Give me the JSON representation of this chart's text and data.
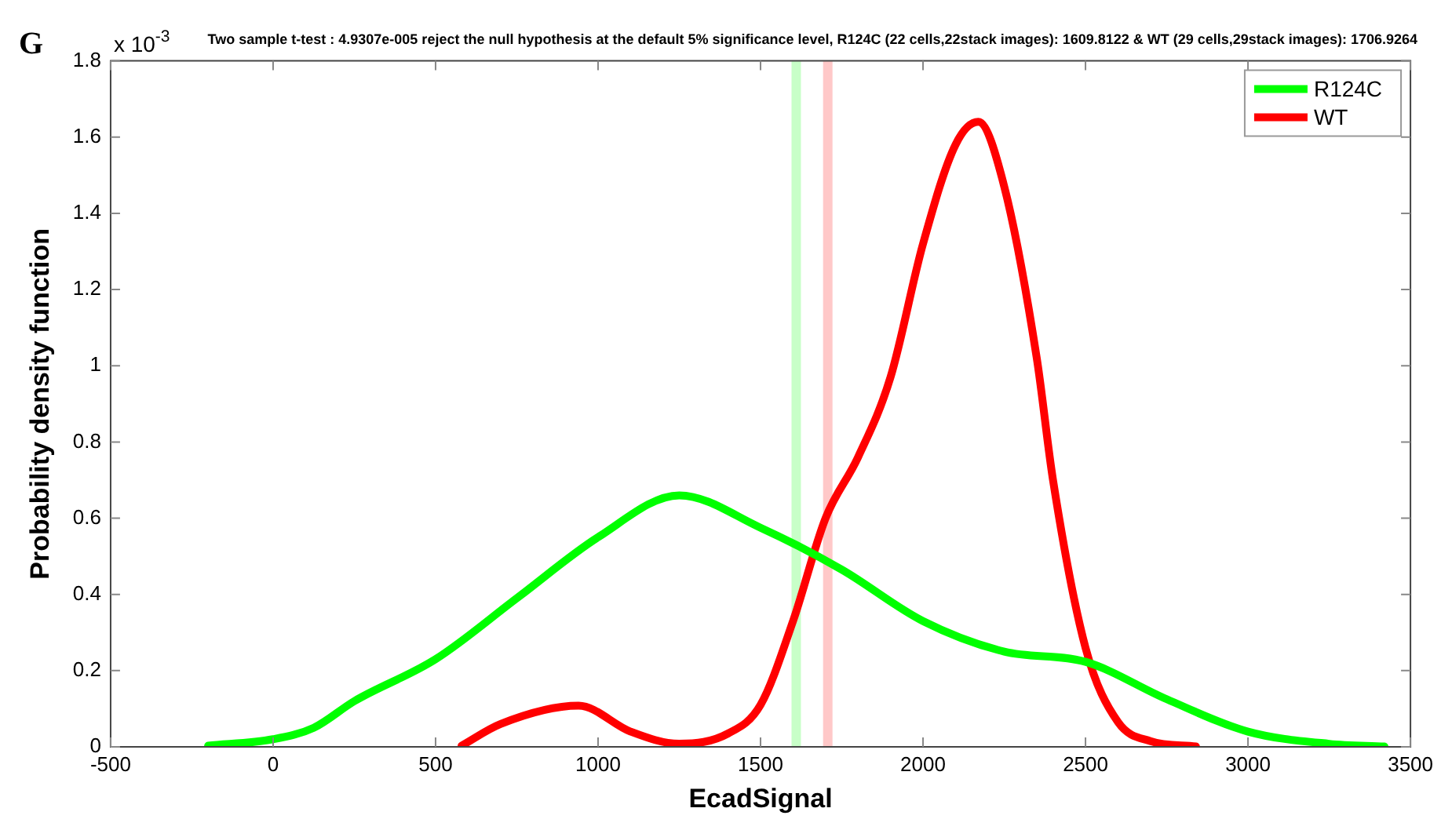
{
  "chart_data": {
    "type": "line",
    "title": "Two sample t-test : 4.9307e-005 reject the null hypothesis at the default 5% significance level, R124C (22 cells,22stack images): 1609.8122 & WT (29 cells,29stack images): 1706.9264",
    "xlabel": "EcadSignal",
    "ylabel": "Probability density function",
    "annotations": [
      "G",
      "x 10$^{-3}$"
    ],
    "xlim": [
      -500,
      3500
    ],
    "xticks": [
      -500,
      0,
      500,
      1000,
      1500,
      2000,
      2500,
      3000,
      3500
    ],
    "ylim": [
      0,
      1.8
    ],
    "yticks": [
      0,
      0.2,
      0.4,
      0.6,
      0.8,
      1,
      1.2,
      1.4,
      1.6,
      1.8
    ],
    "grid": false,
    "legend": "top right",
    "marker": "none",
    "line_style": "solid",
    "ref_lines": [
      {
        "axis": "x",
        "value": 1609.8122,
        "color": "#c8ffc8"
      },
      {
        "axis": "x",
        "value": 1706.9264,
        "color": "#ffc8c8"
      }
    ],
    "series": [
      {
        "name": "R124C",
        "color": "#00ff00",
        "x": [
          -200,
          0,
          125,
          250,
          500,
          750,
          1000,
          1250,
          1500,
          1750,
          2000,
          2250,
          2500,
          2750,
          3000,
          3250,
          3420
        ],
        "values": [
          0.003,
          0.02,
          0.05,
          0.12,
          0.23,
          0.39,
          0.55,
          0.66,
          0.575,
          0.465,
          0.33,
          0.25,
          0.223,
          0.125,
          0.04,
          0.008,
          0.001
        ]
      },
      {
        "name": "WT",
        "color": "#ff0000",
        "x": [
          580,
          700,
          940,
          1100,
          1250,
          1400,
          1500,
          1600,
          1700,
          1800,
          1900,
          2000,
          2100,
          2170,
          2250,
          2350,
          2400,
          2500,
          2600,
          2700,
          2840
        ],
        "values": [
          0.003,
          0.06,
          0.108,
          0.04,
          0.008,
          0.035,
          0.11,
          0.33,
          0.6,
          0.76,
          0.97,
          1.32,
          1.58,
          1.64,
          1.47,
          1.02,
          0.7,
          0.26,
          0.065,
          0.015,
          0.001
        ]
      }
    ]
  }
}
